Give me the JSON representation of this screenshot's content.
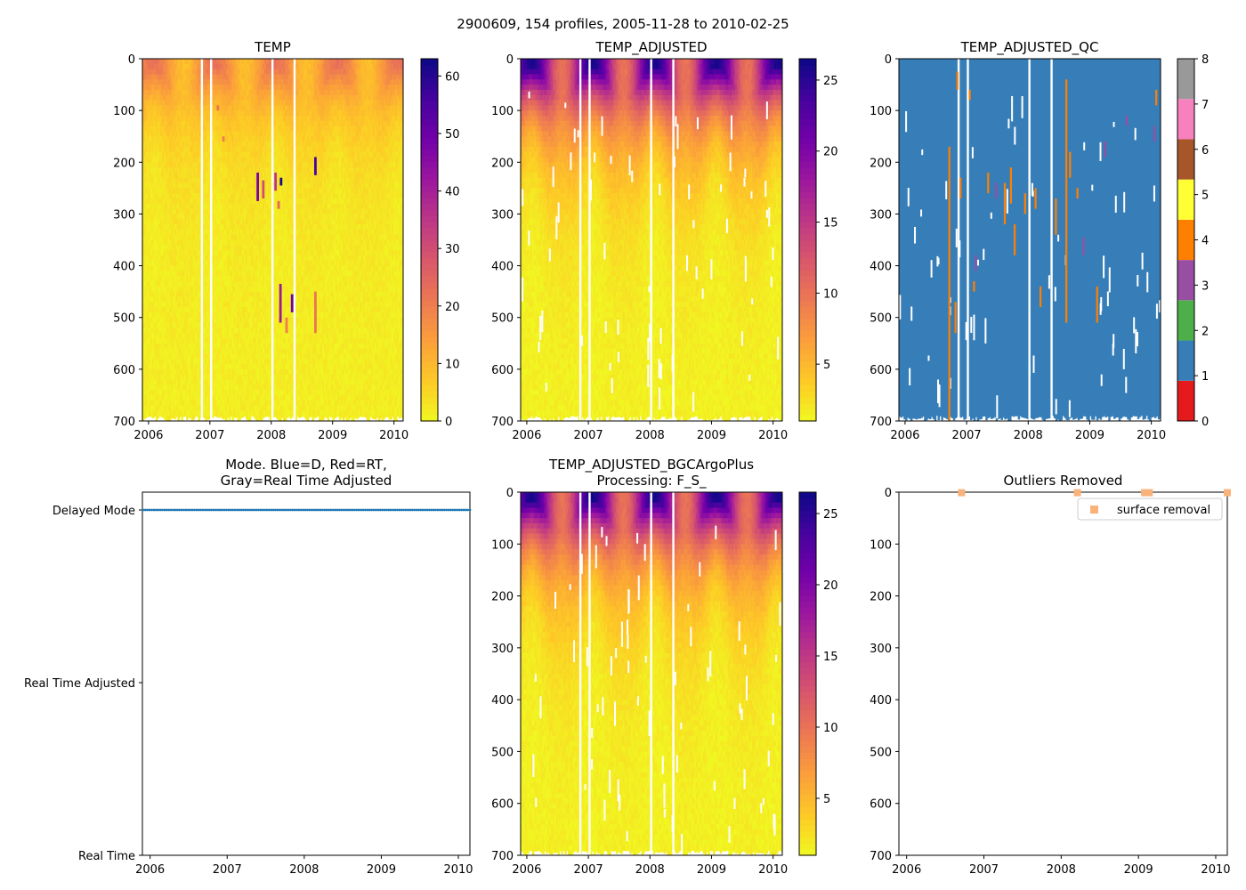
{
  "figure": {
    "suptitle": "2900609, 154 profiles, 2005-11-28 to 2010-02-25"
  },
  "colors": {
    "plasma_stops": [
      "#0d0887",
      "#46039f",
      "#7201a8",
      "#9c179e",
      "#bd3786",
      "#d8576b",
      "#ed7953",
      "#fb9f3a",
      "#fdca26",
      "#f0f921"
    ],
    "qc_colors": [
      "#e41a1c",
      "#377eb8",
      "#4daf4a",
      "#984ea3",
      "#ff7f00",
      "#ffff33",
      "#a65628",
      "#f781bf",
      "#999999"
    ],
    "mode_delayed": "#1f77b4",
    "outlier_marker": "#f9b37a"
  },
  "chart_data": [
    {
      "id": "temp",
      "type": "heatmap",
      "title": "TEMP",
      "x_range": [
        2005.9,
        2010.15
      ],
      "y_range": [
        0,
        700
      ],
      "y_inverted": true,
      "x_ticks": [
        "2006",
        "2007",
        "2008",
        "2009",
        "2010"
      ],
      "y_ticks": [
        "0",
        "100",
        "200",
        "300",
        "400",
        "500",
        "600",
        "700"
      ],
      "colorbar": {
        "range": [
          0,
          63
        ],
        "ticks": [
          "0",
          "10",
          "20",
          "30",
          "40",
          "50",
          "60"
        ],
        "cmap": "plasma_r"
      },
      "anomalies": [
        {
          "t": 2007.78,
          "d0": 220,
          "d1": 275,
          "v": 48
        },
        {
          "t": 2007.87,
          "d0": 235,
          "d1": 270,
          "v": 30
        },
        {
          "t": 2008.07,
          "d0": 220,
          "d1": 255,
          "v": 35
        },
        {
          "t": 2008.16,
          "d0": 230,
          "d1": 245,
          "v": 62
        },
        {
          "t": 2008.12,
          "d0": 275,
          "d1": 290,
          "v": 25
        },
        {
          "t": 2008.72,
          "d0": 190,
          "d1": 225,
          "v": 55
        },
        {
          "t": 2008.15,
          "d0": 435,
          "d1": 510,
          "v": 42
        },
        {
          "t": 2008.34,
          "d0": 455,
          "d1": 490,
          "v": 50
        },
        {
          "t": 2008.25,
          "d0": 500,
          "d1": 530,
          "v": 20
        },
        {
          "t": 2008.72,
          "d0": 450,
          "d1": 530,
          "v": 22
        },
        {
          "t": 2007.22,
          "d0": 150,
          "d1": 160,
          "v": 20
        },
        {
          "t": 2007.13,
          "d0": 90,
          "d1": 100,
          "v": 22
        }
      ]
    },
    {
      "id": "temp_adjusted",
      "type": "heatmap",
      "title": "TEMP_ADJUSTED",
      "x_range": [
        2005.9,
        2010.15
      ],
      "y_range": [
        0,
        700
      ],
      "y_inverted": true,
      "x_ticks": [
        "2006",
        "2007",
        "2008",
        "2009",
        "2010"
      ],
      "y_ticks": [
        "0",
        "100",
        "200",
        "300",
        "400",
        "500",
        "600",
        "700"
      ],
      "colorbar": {
        "range": [
          1,
          26.5
        ],
        "ticks": [
          "5",
          "10",
          "15",
          "20",
          "25"
        ],
        "cmap": "plasma_r"
      }
    },
    {
      "id": "temp_adjusted_qc",
      "type": "heatmap",
      "title": "TEMP_ADJUSTED_QC",
      "x_range": [
        2005.9,
        2010.15
      ],
      "y_range": [
        0,
        700
      ],
      "y_inverted": true,
      "x_ticks": [
        "2006",
        "2007",
        "2008",
        "2009",
        "2010"
      ],
      "y_ticks": [
        "0",
        "100",
        "200",
        "300",
        "400",
        "500",
        "600",
        "700"
      ],
      "colorbar": {
        "range": [
          0,
          8
        ],
        "ticks": [
          "0",
          "1",
          "2",
          "3",
          "4",
          "5",
          "6",
          "7",
          "8"
        ],
        "cmap": "qc"
      },
      "background_flag": 1,
      "flag_segments": [
        {
          "t": 2006.72,
          "d0": 170,
          "d1": 700,
          "flag": 4
        },
        {
          "t": 2006.85,
          "d0": 25,
          "d1": 60,
          "flag": 4
        },
        {
          "t": 2006.82,
          "d0": 470,
          "d1": 530,
          "flag": 4
        },
        {
          "t": 2006.9,
          "d0": 230,
          "d1": 270,
          "flag": 4
        },
        {
          "t": 2007.05,
          "d0": 60,
          "d1": 80,
          "flag": 4
        },
        {
          "t": 2007.12,
          "d0": 430,
          "d1": 450,
          "flag": 4
        },
        {
          "t": 2007.15,
          "d0": 380,
          "d1": 410,
          "flag": 3
        },
        {
          "t": 2007.35,
          "d0": 220,
          "d1": 260,
          "flag": 4
        },
        {
          "t": 2007.48,
          "d0": 240,
          "d1": 270,
          "flag": 3
        },
        {
          "t": 2007.62,
          "d0": 240,
          "d1": 320,
          "flag": 4
        },
        {
          "t": 2007.72,
          "d0": 210,
          "d1": 280,
          "flag": 4
        },
        {
          "t": 2007.78,
          "d0": 320,
          "d1": 380,
          "flag": 4
        },
        {
          "t": 2007.95,
          "d0": 260,
          "d1": 300,
          "flag": 4
        },
        {
          "t": 2008.12,
          "d0": 250,
          "d1": 290,
          "flag": 4
        },
        {
          "t": 2008.2,
          "d0": 440,
          "d1": 480,
          "flag": 4
        },
        {
          "t": 2008.45,
          "d0": 270,
          "d1": 340,
          "flag": 4
        },
        {
          "t": 2008.62,
          "d0": 40,
          "d1": 510,
          "flag": 4
        },
        {
          "t": 2008.68,
          "d0": 180,
          "d1": 230,
          "flag": 4
        },
        {
          "t": 2008.8,
          "d0": 250,
          "d1": 270,
          "flag": 4
        },
        {
          "t": 2008.9,
          "d0": 345,
          "d1": 380,
          "flag": 3
        },
        {
          "t": 2009.12,
          "d0": 440,
          "d1": 510,
          "flag": 4
        },
        {
          "t": 2009.25,
          "d0": 160,
          "d1": 190,
          "flag": 3
        },
        {
          "t": 2009.6,
          "d0": 110,
          "d1": 130,
          "flag": 3
        },
        {
          "t": 2010.05,
          "d0": 130,
          "d1": 160,
          "flag": 3
        },
        {
          "t": 2010.08,
          "d0": 60,
          "d1": 90,
          "flag": 4
        }
      ]
    },
    {
      "id": "mode",
      "type": "scatter",
      "title": [
        "Mode. Blue=D, Red=RT,",
        "Gray=Real Time Adjusted"
      ],
      "x_range": [
        2005.9,
        2010.15
      ],
      "x_ticks": [
        "2006",
        "2007",
        "2008",
        "2009",
        "2010"
      ],
      "y_ticks": [
        "Delayed Mode",
        "Real Time Adjusted",
        "Real Time"
      ],
      "profile_count": 154,
      "points": {
        "level": "Delayed Mode",
        "t_start": 2005.91,
        "t_end": 2010.15
      }
    },
    {
      "id": "temp_adjusted_bgc",
      "type": "heatmap",
      "title": [
        "TEMP_ADJUSTED_BGCArgoPlus",
        "Processing: F_S_"
      ],
      "x_range": [
        2005.9,
        2010.15
      ],
      "y_range": [
        0,
        700
      ],
      "y_inverted": true,
      "x_ticks": [
        "2006",
        "2007",
        "2008",
        "2009",
        "2010"
      ],
      "y_ticks": [
        "0",
        "100",
        "200",
        "300",
        "400",
        "500",
        "600",
        "700"
      ],
      "colorbar": {
        "range": [
          1,
          26.5
        ],
        "ticks": [
          "5",
          "10",
          "15",
          "20",
          "25"
        ],
        "cmap": "plasma_r"
      }
    },
    {
      "id": "outliers",
      "type": "scatter",
      "title": "Outliers Removed",
      "x_range": [
        2005.9,
        2010.15
      ],
      "y_range": [
        0,
        700
      ],
      "y_inverted": true,
      "x_ticks": [
        "2006",
        "2007",
        "2008",
        "2009",
        "2010"
      ],
      "y_ticks": [
        "0",
        "100",
        "200",
        "300",
        "400",
        "500",
        "600",
        "700"
      ],
      "legend": {
        "label": "surface removal",
        "loc": "upper right"
      },
      "points": [
        {
          "t": 2006.71,
          "d": 1
        },
        {
          "t": 2008.21,
          "d": 1
        },
        {
          "t": 2009.08,
          "d": 1
        },
        {
          "t": 2009.14,
          "d": 1
        },
        {
          "t": 2010.15,
          "d": 1
        }
      ]
    }
  ]
}
